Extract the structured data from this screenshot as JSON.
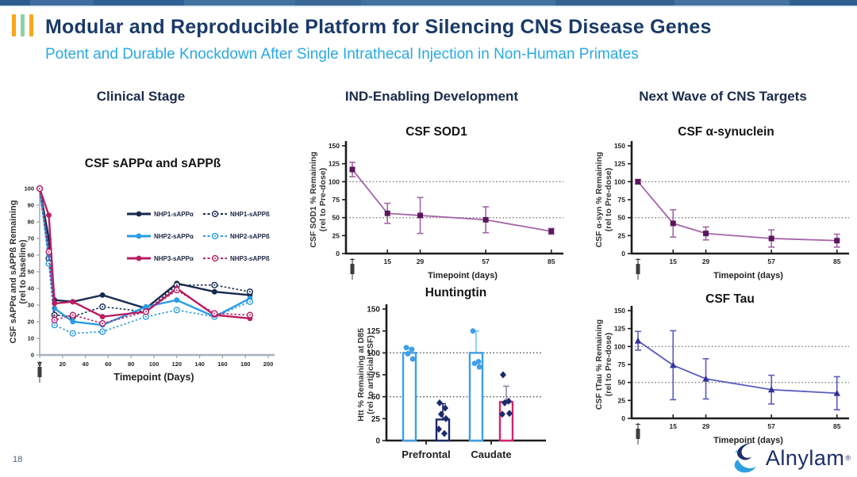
{
  "slide": {
    "title": "Modular and Reproducible Platform for Silencing CNS Disease Genes",
    "subtitle": "Potent and Durable Knockdown After Single Intrathecal Injection in Non-Human Primates",
    "page_number": "18",
    "logo_text": "Alnylam",
    "logo_reg": "®",
    "columns": [
      {
        "header": "Clinical Stage"
      },
      {
        "header": "IND-Enabling Development"
      },
      {
        "header": "Next Wave of CNS Targets"
      }
    ],
    "colors": {
      "title_navy": "#1a3a68",
      "subtitle_blue": "#29a9e2",
      "deco_orange": "#f9a51a",
      "deco_green": "#8fd0a8"
    }
  },
  "chart_data": [
    {
      "id": "sapp",
      "type": "line",
      "title": "CSF sAPPα and sAPPß",
      "xlabel": "Timepoint (Days)",
      "ylabel_lines": [
        "CSF sAPPα and sAPPß Remaining",
        "(rel to baseline)"
      ],
      "xlim": [
        0,
        200
      ],
      "ylim": [
        0,
        100
      ],
      "xticks": [
        0,
        20,
        40,
        60,
        80,
        100,
        120,
        140,
        160,
        180,
        200
      ],
      "yticks": [
        0,
        10,
        20,
        30,
        40,
        50,
        60,
        70,
        80,
        90,
        100
      ],
      "grid": false,
      "legend_position": "inside-top-right",
      "syringe_at_x": 0,
      "x": [
        0,
        8,
        13,
        29,
        55,
        93,
        120,
        153,
        184
      ],
      "series": [
        {
          "name": "NHP1-sAPPα",
          "color": "#16294e",
          "dash": false,
          "marker": "circle",
          "values": [
            100,
            70,
            33,
            32,
            36,
            28,
            43,
            38,
            36
          ]
        },
        {
          "name": "NHP1-sAPPß",
          "color": "#16294e",
          "dash": true,
          "marker": "circle-open",
          "values": [
            100,
            58,
            24,
            23,
            29,
            26,
            42,
            42,
            38
          ]
        },
        {
          "name": "NHP2-sAPPα",
          "color": "#289de2",
          "dash": false,
          "marker": "circle",
          "values": [
            100,
            60,
            28,
            20,
            18,
            29,
            33,
            23,
            34
          ]
        },
        {
          "name": "NHP2-sAPPß",
          "color": "#289de2",
          "dash": true,
          "marker": "circle-open",
          "values": [
            100,
            55,
            18,
            13,
            14,
            23,
            27,
            23,
            32
          ]
        },
        {
          "name": "NHP3-sAPPα",
          "color": "#b91d62",
          "dash": false,
          "marker": "circle",
          "values": [
            100,
            84,
            31,
            32,
            23,
            26,
            40,
            24,
            22
          ]
        },
        {
          "name": "NHP3-sAPPß",
          "color": "#b91d62",
          "dash": true,
          "marker": "circle-open",
          "values": [
            100,
            62,
            21,
            24,
            19,
            26,
            39,
            25,
            24
          ]
        }
      ],
      "legend_rows": [
        [
          0,
          1
        ],
        [
          2,
          3
        ],
        [
          4,
          5
        ]
      ]
    },
    {
      "id": "sod1",
      "type": "line-error",
      "title": "CSF SOD1",
      "xlabel": "Timepoint (days)",
      "ylabel_lines": [
        "CSF SOD1 % Remaining",
        "(rel to Pre-dose)"
      ],
      "ylim": [
        0,
        150
      ],
      "yticks": [
        0,
        25,
        50,
        75,
        100,
        125,
        150
      ],
      "xticks": [
        15,
        29,
        57,
        85
      ],
      "hlines": [
        100,
        50
      ],
      "syringe_at_x": 0,
      "x": [
        0,
        15,
        29,
        57,
        85
      ],
      "y": [
        117,
        56,
        53,
        47,
        31
      ],
      "yerr": [
        10,
        14,
        25,
        18,
        4
      ],
      "line_color": "#a565a8",
      "marker_color": "#5a175d",
      "marker": "square"
    },
    {
      "id": "htt",
      "type": "bar",
      "title": "Huntingtin",
      "ylabel_lines": [
        "Htt % Remaining at D85",
        "(rel to artificial CSF)"
      ],
      "ylim": [
        0,
        150
      ],
      "yticks": [
        0,
        25,
        50,
        75,
        100,
        125,
        150
      ],
      "hlines": [
        100,
        50
      ],
      "categories": [
        "Prefrontal",
        "Caudate"
      ],
      "bars": [
        {
          "category": "Prefrontal",
          "outline_color": "#3d9fe8",
          "value": 100,
          "err": 6,
          "err_color": "#7ec3f0",
          "dot_color": "#3d9fe8",
          "dot_shape": "circle",
          "dots": [
            106,
            104,
            99,
            93
          ]
        },
        {
          "category": "Prefrontal",
          "outline_color": "#1b2a6b",
          "value": 24,
          "err": 18,
          "err_color": "#1b2a6b",
          "dot_color": "#1b2a6b",
          "dot_shape": "diamond",
          "dots": [
            43,
            37,
            30,
            25,
            13,
            8
          ]
        },
        {
          "category": "Caudate",
          "outline_color": "#3d9fe8",
          "value": 100,
          "err": 25,
          "err_color": "#7ec3f0",
          "dot_color": "#3d9fe8",
          "dot_shape": "circle",
          "dots": [
            125,
            90,
            88,
            84
          ]
        },
        {
          "category": "Caudate",
          "outline_color": "#d6246e",
          "value": 44,
          "err": 18,
          "err_color": "#8a8aa0",
          "dot_color": "#1b2a6b",
          "dot_shape": "diamond",
          "dots": [
            75,
            45,
            43,
            31,
            30
          ]
        }
      ]
    },
    {
      "id": "asyn",
      "type": "line-error",
      "title": "CSF α-synuclein",
      "xlabel": "Timepoint (days)",
      "ylabel_lines": [
        "CSF α-syn % Remaining",
        "(rel to Pre-dose)"
      ],
      "ylim": [
        0,
        150
      ],
      "yticks": [
        0,
        25,
        50,
        75,
        100,
        125,
        150
      ],
      "xticks": [
        15,
        29,
        57,
        85
      ],
      "hlines": [
        100,
        50
      ],
      "syringe_at_x": 0,
      "x": [
        0,
        15,
        29,
        57,
        85
      ],
      "y": [
        100,
        42,
        28,
        21,
        18
      ],
      "yerr": [
        3,
        19,
        9,
        12,
        9
      ],
      "line_color": "#a565a8",
      "marker_color": "#5a175d",
      "marker": "square"
    },
    {
      "id": "tau",
      "type": "line-error",
      "title": "CSF Tau",
      "xlabel": "Timepoint (days)",
      "ylabel_lines": [
        "CSF tTau %  Remaining",
        "(rel to Pre-dose)"
      ],
      "ylim": [
        0,
        150
      ],
      "yticks": [
        0,
        25,
        50,
        75,
        100,
        125,
        150
      ],
      "xticks": [
        15,
        29,
        57,
        85
      ],
      "hlines": [
        100,
        50
      ],
      "syringe_at_x": 0,
      "x": [
        0,
        15,
        29,
        57,
        85
      ],
      "y": [
        108,
        74,
        55,
        40,
        35
      ],
      "yerr": [
        13,
        48,
        28,
        20,
        23
      ],
      "line_color": "#5b5bbd",
      "marker_color": "#32329b",
      "marker": "triangle"
    }
  ]
}
